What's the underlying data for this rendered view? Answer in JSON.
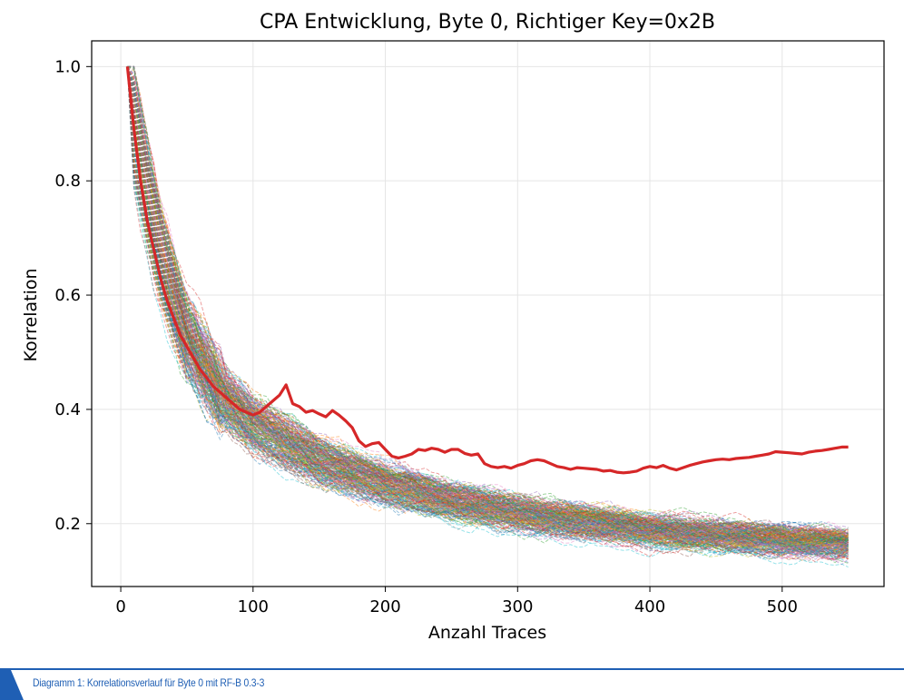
{
  "chart_data": {
    "type": "line",
    "title": "CPA Entwicklung, Byte 0, Richtiger Key=0x2B",
    "xlabel": "Anzahl Traces",
    "ylabel": "Korrelation",
    "xlim": [
      -22,
      577
    ],
    "ylim": [
      0.09,
      1.045
    ],
    "xticks": [
      0,
      100,
      200,
      300,
      400,
      500
    ],
    "yticks": [
      0.2,
      0.4,
      0.6,
      0.8,
      1.0
    ],
    "xtick_labels": [
      "0",
      "100",
      "200",
      "300",
      "400",
      "500"
    ],
    "ytick_labels": [
      "0.2",
      "0.4",
      "0.6",
      "0.8",
      "1.0"
    ],
    "grid": true,
    "legend": "none",
    "x_start": 5,
    "x_end": 550,
    "x_step": 5,
    "background_keys": {
      "count": 255,
      "style": "dashed",
      "opacity": 0.45,
      "curve_points": [
        [
          5,
          1.0
        ],
        [
          10,
          0.9
        ],
        [
          20,
          0.78
        ],
        [
          30,
          0.67
        ],
        [
          50,
          0.53
        ],
        [
          75,
          0.43
        ],
        [
          100,
          0.375
        ],
        [
          150,
          0.31
        ],
        [
          200,
          0.27
        ],
        [
          250,
          0.24
        ],
        [
          300,
          0.22
        ],
        [
          350,
          0.205
        ],
        [
          400,
          0.19
        ],
        [
          450,
          0.18
        ],
        [
          500,
          0.172
        ],
        [
          550,
          0.165
        ]
      ]
    },
    "highlight_series": {
      "name": "0x2B",
      "color": "#d62728",
      "style": "solid",
      "x_start": 5,
      "x_step": 5,
      "values": [
        1.0,
        0.89,
        0.8,
        0.73,
        0.68,
        0.63,
        0.59,
        0.56,
        0.53,
        0.51,
        0.49,
        0.47,
        0.455,
        0.44,
        0.43,
        0.42,
        0.41,
        0.4,
        0.395,
        0.39,
        0.395,
        0.405,
        0.415,
        0.425,
        0.443,
        0.41,
        0.405,
        0.395,
        0.398,
        0.392,
        0.387,
        0.398,
        0.39,
        0.38,
        0.368,
        0.345,
        0.335,
        0.34,
        0.342,
        0.33,
        0.318,
        0.315,
        0.318,
        0.322,
        0.33,
        0.328,
        0.332,
        0.33,
        0.325,
        0.33,
        0.33,
        0.323,
        0.32,
        0.322,
        0.305,
        0.3,
        0.298,
        0.3,
        0.297,
        0.302,
        0.305,
        0.31,
        0.312,
        0.31,
        0.305,
        0.3,
        0.298,
        0.295,
        0.298,
        0.297,
        0.296,
        0.295,
        0.292,
        0.293,
        0.29,
        0.289,
        0.29,
        0.292,
        0.297,
        0.3,
        0.298,
        0.302,
        0.297,
        0.294,
        0.298,
        0.302,
        0.305,
        0.308,
        0.31,
        0.312,
        0.313,
        0.312,
        0.314,
        0.315,
        0.316,
        0.318,
        0.32,
        0.322,
        0.326,
        0.325,
        0.324,
        0.323,
        0.322,
        0.325,
        0.327,
        0.328,
        0.33,
        0.332,
        0.334,
        0.334
      ]
    },
    "palette": [
      "#1f77b4",
      "#ff7f0e",
      "#2ca02c",
      "#d62728",
      "#9467bd",
      "#8c564b",
      "#e377c2",
      "#7f7f7f",
      "#bcbd22",
      "#17becf"
    ]
  },
  "caption": {
    "text": "Diagramm 1: Korrelationsverlauf für Byte 0 mit RF-B 0.3-3",
    "color": "#1f5fb4"
  }
}
